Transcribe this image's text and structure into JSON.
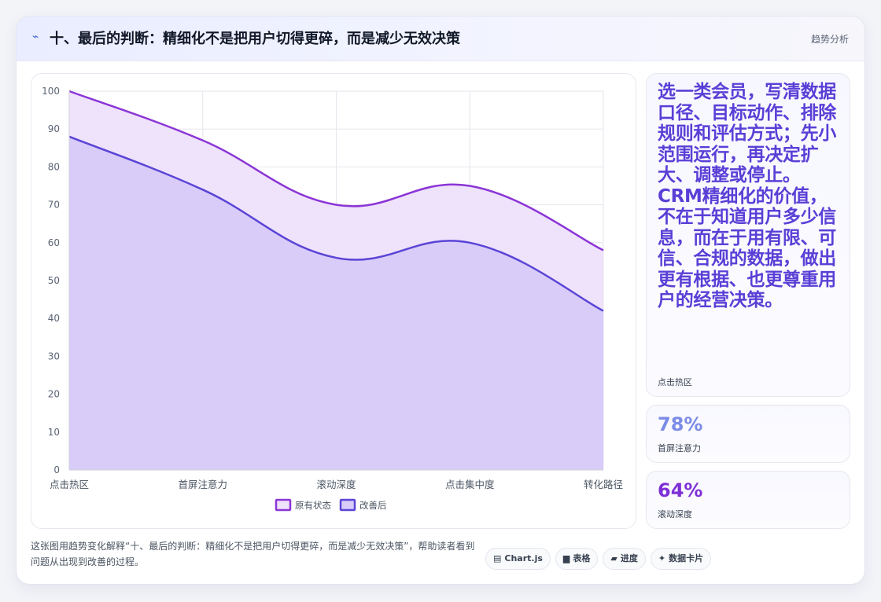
{
  "header": {
    "icon": "trend-icon",
    "title": "十、最后的判断：精细化不是把用户切得更碎，而是减少无效决策",
    "tag": "趋势分析"
  },
  "side": {
    "main_text": "选一类会员，写清数据口径、目标动作、排除规则和评估方式；先小范围运行，再决定扩大、调整或停止。CRM精细化的价值，不在于知道用户多少信息，而在于用有限、可信、合规的数据，做出更有根据、也更尊重用户的经营决策。",
    "main_label": "点击热区",
    "stats": [
      {
        "value": "78%",
        "label": "首屏注意力",
        "color": "#7b8ce6"
      },
      {
        "value": "64%",
        "label": "滚动深度",
        "color": "#7e2fd6"
      }
    ]
  },
  "footer": {
    "text": "这张图用趋势变化解释“十、最后的判断：精细化不是把用户切得更碎，而是减少无效决策”，帮助读者看到问题从出现到改善的过程。",
    "chips": [
      {
        "icon": "chart-icon",
        "glyph": "▤",
        "label": "Chart.js"
      },
      {
        "icon": "table-icon",
        "glyph": "▆",
        "label": "表格"
      },
      {
        "icon": "progress-icon",
        "glyph": "▰",
        "label": "进度"
      },
      {
        "icon": "sparkle-icon",
        "glyph": "✦",
        "label": "数据卡片"
      }
    ]
  },
  "chart_data": {
    "type": "area",
    "categories": [
      "点击热区",
      "首屏注意力",
      "滚动深度",
      "点击集中度",
      "转化路径"
    ],
    "ylim": [
      0,
      100
    ],
    "yticks": [
      0,
      10,
      20,
      30,
      40,
      50,
      60,
      70,
      80,
      90,
      100
    ],
    "grid": true,
    "legend": "bottom",
    "series": [
      {
        "name": "原有状态",
        "values": [
          100,
          87,
          70,
          75,
          58
        ],
        "color": "#8b35d6",
        "fill": "#efe2fb"
      },
      {
        "name": "改善后",
        "values": [
          88,
          74,
          56,
          60,
          42
        ],
        "color": "#5a45d6",
        "fill": "#d9ccf8"
      }
    ]
  }
}
